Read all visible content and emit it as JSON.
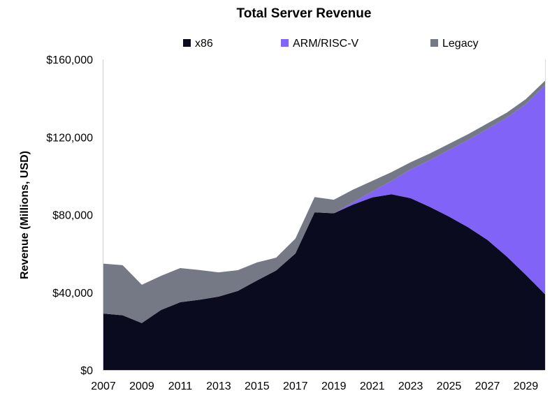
{
  "chart_data": {
    "type": "area",
    "stacked": true,
    "title": "Total Server Revenue",
    "xlabel": "",
    "ylabel": "Revenue (Millions, USD)",
    "ylim": [
      0,
      160000
    ],
    "xlim": [
      2007,
      2030
    ],
    "yticks": [
      0,
      40000,
      80000,
      120000,
      160000
    ],
    "ytick_labels": [
      "$0",
      "$40,000",
      "$80,000",
      "$120,000",
      "$160,000"
    ],
    "xtick_labels": [
      "2007",
      "2009",
      "2011",
      "2013",
      "2015",
      "2017",
      "2019",
      "2021",
      "2023",
      "2025",
      "2027",
      "2029"
    ],
    "grid": false,
    "legend_position": "top",
    "x": [
      2007,
      2008,
      2009,
      2010,
      2011,
      2012,
      2013,
      2014,
      2015,
      2016,
      2017,
      2018,
      2019,
      2020,
      2021,
      2022,
      2023,
      2024,
      2025,
      2026,
      2027,
      2028,
      2029,
      2030
    ],
    "series": [
      {
        "name": "x86",
        "color": "#0b0b20",
        "values": [
          29100,
          28200,
          24200,
          30900,
          34900,
          36200,
          37800,
          40700,
          46100,
          51300,
          60000,
          81200,
          80700,
          85200,
          88900,
          90500,
          88500,
          84000,
          79000,
          73500,
          67000,
          58500,
          49000,
          39000
        ]
      },
      {
        "name": "ARM/RISC-V",
        "color": "#8263f8",
        "values": [
          0,
          0,
          0,
          0,
          0,
          0,
          0,
          0,
          0,
          0,
          0,
          0,
          0,
          1200,
          3000,
          6900,
          14800,
          24100,
          34300,
          45000,
          57200,
          71400,
          88000,
          107600
        ]
      },
      {
        "name": "Legacy",
        "color": "#747985",
        "values": [
          25700,
          25800,
          19700,
          17600,
          17600,
          15300,
          12500,
          10700,
          9300,
          6600,
          7700,
          7900,
          7000,
          6500,
          5500,
          4500,
          3700,
          3400,
          3200,
          3000,
          2800,
          2600,
          2500,
          2400
        ]
      }
    ]
  }
}
